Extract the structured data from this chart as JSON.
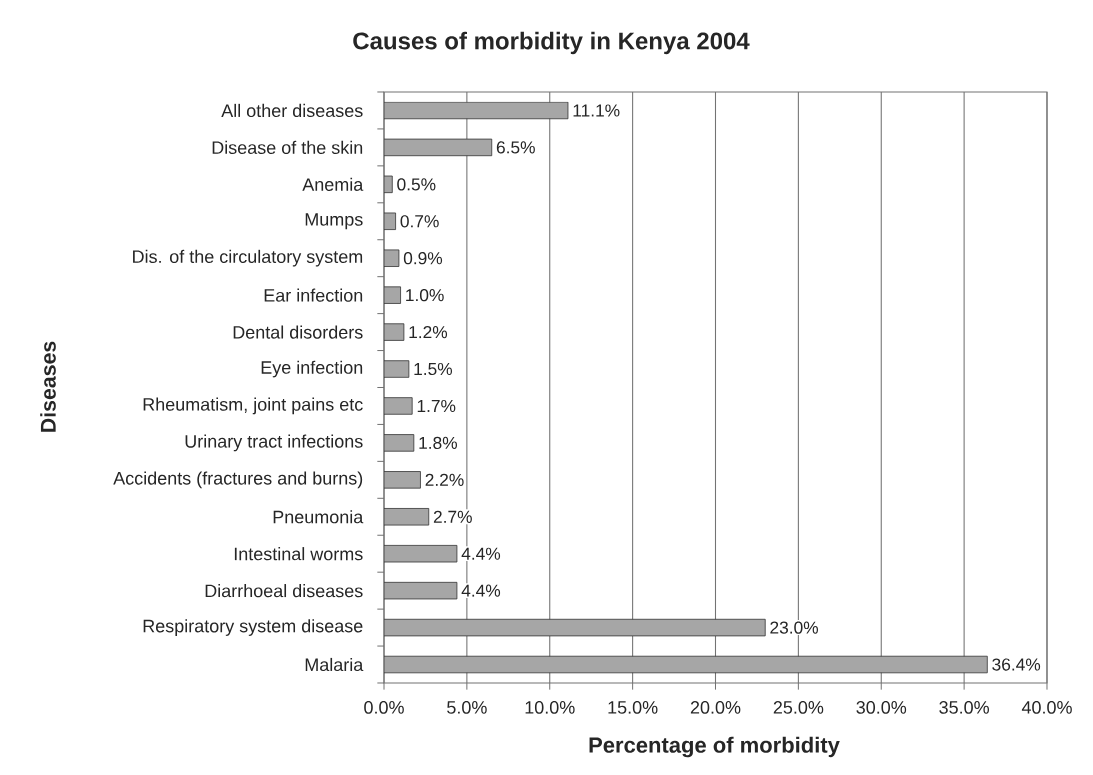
{
  "chart_data": {
    "type": "bar",
    "orientation": "horizontal",
    "title": "Causes of morbidity in Kenya 2004",
    "xlabel": "Percentage of morbidity",
    "ylabel": "Diseases",
    "categories": [
      "All other diseases",
      "Disease of the skin",
      "Anemia",
      "Mumps",
      "Dis. of the circulatory system",
      "Ear infection",
      "Dental disorders",
      "Eye infection",
      "Rheumatism, joint pains etc",
      "Urinary tract infections",
      "Accidents (fractures and burns)",
      "Pneumonia",
      "Intestinal worms",
      "Diarrhoeal diseases",
      "Respiratory system disease",
      "Malaria"
    ],
    "values": [
      11.1,
      6.5,
      0.5,
      0.7,
      0.9,
      1.0,
      1.2,
      1.5,
      1.7,
      1.8,
      2.2,
      2.7,
      4.4,
      4.4,
      23.0,
      36.4
    ],
    "value_labels": [
      "11.1%",
      "6.5%",
      "0.5%",
      "0.7%",
      "0.9%",
      "1.0%",
      "1.2%",
      "1.5%",
      "1.7%",
      "1.8%",
      "2.2%",
      "2.7%",
      "4.4%",
      "4.4%",
      "23.0%",
      "36.4%"
    ],
    "color": "#a6a6a6",
    "xlim": [
      0,
      40
    ],
    "xticks": [
      {
        "value": 0,
        "label": "0.0%"
      },
      {
        "value": 5,
        "label": "5.0%"
      },
      {
        "value": 10,
        "label": "10.0%"
      },
      {
        "value": 15,
        "label": "15.0%"
      },
      {
        "value": 20,
        "label": "20.0%"
      },
      {
        "value": 25,
        "label": "25.0%"
      },
      {
        "value": 30,
        "label": "30.0%"
      },
      {
        "value": 35,
        "label": "35.0%"
      },
      {
        "value": 40,
        "label": "40.0%"
      }
    ],
    "grid": "x"
  }
}
